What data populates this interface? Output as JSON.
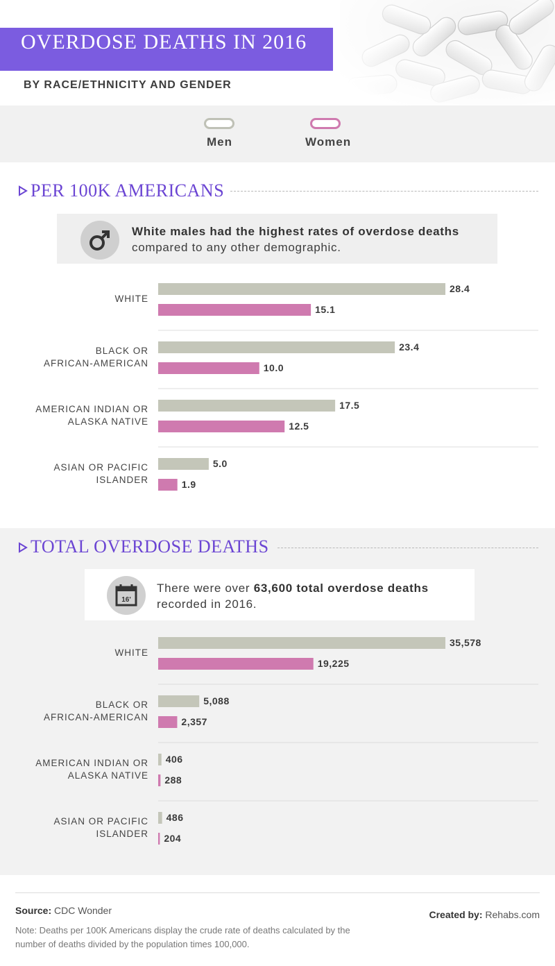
{
  "header": {
    "title": "OVERDOSE DEATHS IN 2016",
    "subtitle": "BY RACE/ETHNICITY AND GENDER"
  },
  "legend": {
    "men": "Men",
    "women": "Women"
  },
  "colors": {
    "men": "#c4c6b9",
    "women": "#cf7aaf",
    "accent": "#7b5ce0",
    "heading": "#6b45d3"
  },
  "section1": {
    "heading": "PER 100K AMERICANS",
    "icon": "male-symbol-icon",
    "callout_bold": "White males had the highest rates of overdose deaths",
    "callout_rest": "compared to any other demographic."
  },
  "section2": {
    "heading": "TOTAL OVERDOSE DEATHS",
    "icon": "calendar-icon",
    "calendar_label": "16'",
    "callout_pre": "There were over ",
    "callout_bold": "63,600 total overdose deaths",
    "callout_post": "recorded in 2016."
  },
  "chart_data": [
    {
      "type": "bar",
      "orientation": "horizontal",
      "title": "PER 100K AMERICANS",
      "categories": [
        [
          "WHITE"
        ],
        [
          "BLACK OR",
          "AFRICAN-AMERICAN"
        ],
        [
          "AMERICAN INDIAN OR",
          "ALASKA NATIVE"
        ],
        [
          "ASIAN OR PACIFIC",
          "ISLANDER"
        ]
      ],
      "series": [
        {
          "name": "Men",
          "values": [
            28.4,
            23.4,
            17.5,
            5.0
          ],
          "labels": [
            "28.4",
            "23.4",
            "17.5",
            "5.0"
          ]
        },
        {
          "name": "Women",
          "values": [
            15.1,
            10.0,
            12.5,
            1.9
          ],
          "labels": [
            "15.1",
            "10.0",
            "12.5",
            "1.9"
          ]
        }
      ],
      "xlim": [
        0,
        28.4
      ]
    },
    {
      "type": "bar",
      "orientation": "horizontal",
      "title": "TOTAL OVERDOSE DEATHS",
      "categories": [
        [
          "WHITE"
        ],
        [
          "BLACK OR",
          "AFRICAN-AMERICAN"
        ],
        [
          "AMERICAN INDIAN OR",
          "ALASKA NATIVE"
        ],
        [
          "ASIAN OR PACIFIC",
          "ISLANDER"
        ]
      ],
      "series": [
        {
          "name": "Men",
          "values": [
            35578,
            5088,
            406,
            486
          ],
          "labels": [
            "35,578",
            "5,088",
            "406",
            "486"
          ]
        },
        {
          "name": "Women",
          "values": [
            19225,
            2357,
            288,
            204
          ],
          "labels": [
            "19,225",
            "2,357",
            "288",
            "204"
          ]
        }
      ],
      "xlim": [
        0,
        35578
      ]
    }
  ],
  "footer": {
    "source_label": "Source:",
    "source_value": "CDC Wonder",
    "created_label": "Created by:",
    "created_value": "Rehabs.com",
    "note": "Note: Deaths per 100K Americans display the crude rate of deaths calculated by the number of deaths divided by the population times 100,000."
  }
}
